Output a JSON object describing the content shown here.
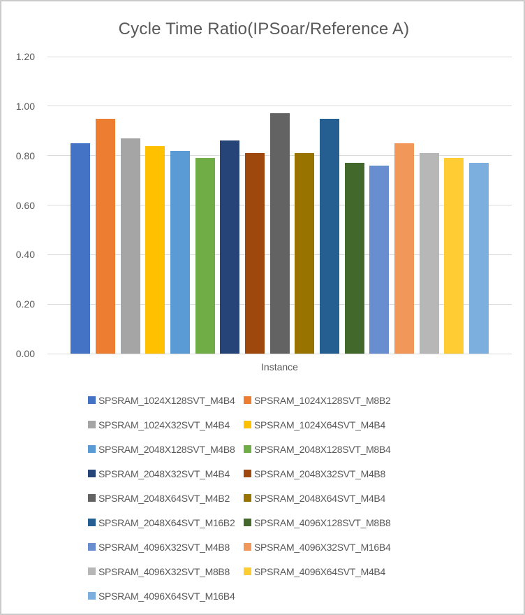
{
  "style": {
    "text_color": "#595959",
    "gridline_color": "#D9D9D9",
    "background_color": "#FFFFFF",
    "frame_border_color": "#CBCBCB"
  },
  "chart_data": {
    "type": "bar",
    "title": "Cycle Time Ratio(IPSoar/Reference A)",
    "xlabel": "Instance",
    "ylabel": "",
    "ylim": [
      0,
      1.2
    ],
    "grid": true,
    "legend_position": "bottom",
    "legend_columns": 2,
    "yticks": [
      {
        "label": "0.00",
        "value": 0.0
      },
      {
        "label": "0.20",
        "value": 0.2
      },
      {
        "label": "0.40",
        "value": 0.4
      },
      {
        "label": "0.60",
        "value": 0.6
      },
      {
        "label": "0.80",
        "value": 0.8
      },
      {
        "label": "1.00",
        "value": 1.0
      },
      {
        "label": "1.20",
        "value": 1.2
      }
    ],
    "series": [
      {
        "name": "SPSRAM_1024X128SVT_M4B4",
        "value": 0.85,
        "color": "#4472C4"
      },
      {
        "name": "SPSRAM_1024X128SVT_M8B2",
        "value": 0.95,
        "color": "#ED7D31"
      },
      {
        "name": "SPSRAM_1024X32SVT_M4B4",
        "value": 0.87,
        "color": "#A5A5A5"
      },
      {
        "name": "SPSRAM_1024X64SVT_M4B4",
        "value": 0.84,
        "color": "#FFC000"
      },
      {
        "name": "SPSRAM_2048X128SVT_M4B8",
        "value": 0.82,
        "color": "#5B9BD5"
      },
      {
        "name": "SPSRAM_2048X128SVT_M8B4",
        "value": 0.79,
        "color": "#70AD47"
      },
      {
        "name": "SPSRAM_2048X32SVT_M4B4",
        "value": 0.86,
        "color": "#264478"
      },
      {
        "name": "SPSRAM_2048X32SVT_M4B8",
        "value": 0.81,
        "color": "#9E480E"
      },
      {
        "name": "SPSRAM_2048X64SVT_M4B2",
        "value": 0.97,
        "color": "#636363"
      },
      {
        "name": "SPSRAM_2048X64SVT_M4B4",
        "value": 0.81,
        "color": "#997300"
      },
      {
        "name": "SPSRAM_2048X64SVT_M16B2",
        "value": 0.95,
        "color": "#255E91"
      },
      {
        "name": "SPSRAM_4096X128SVT_M8B8",
        "value": 0.77,
        "color": "#43682B"
      },
      {
        "name": "SPSRAM_4096X32SVT_M4B8",
        "value": 0.76,
        "color": "#698ED0"
      },
      {
        "name": "SPSRAM_4096X32SVT_M16B4",
        "value": 0.85,
        "color": "#F1975A"
      },
      {
        "name": "SPSRAM_4096X32SVT_M8B8",
        "value": 0.81,
        "color": "#B7B7B7"
      },
      {
        "name": "SPSRAM_4096X64SVT_M4B4",
        "value": 0.79,
        "color": "#FFCD33"
      },
      {
        "name": "SPSRAM_4096X64SVT_M16B4",
        "value": 0.77,
        "color": "#7CAFDD"
      }
    ]
  }
}
